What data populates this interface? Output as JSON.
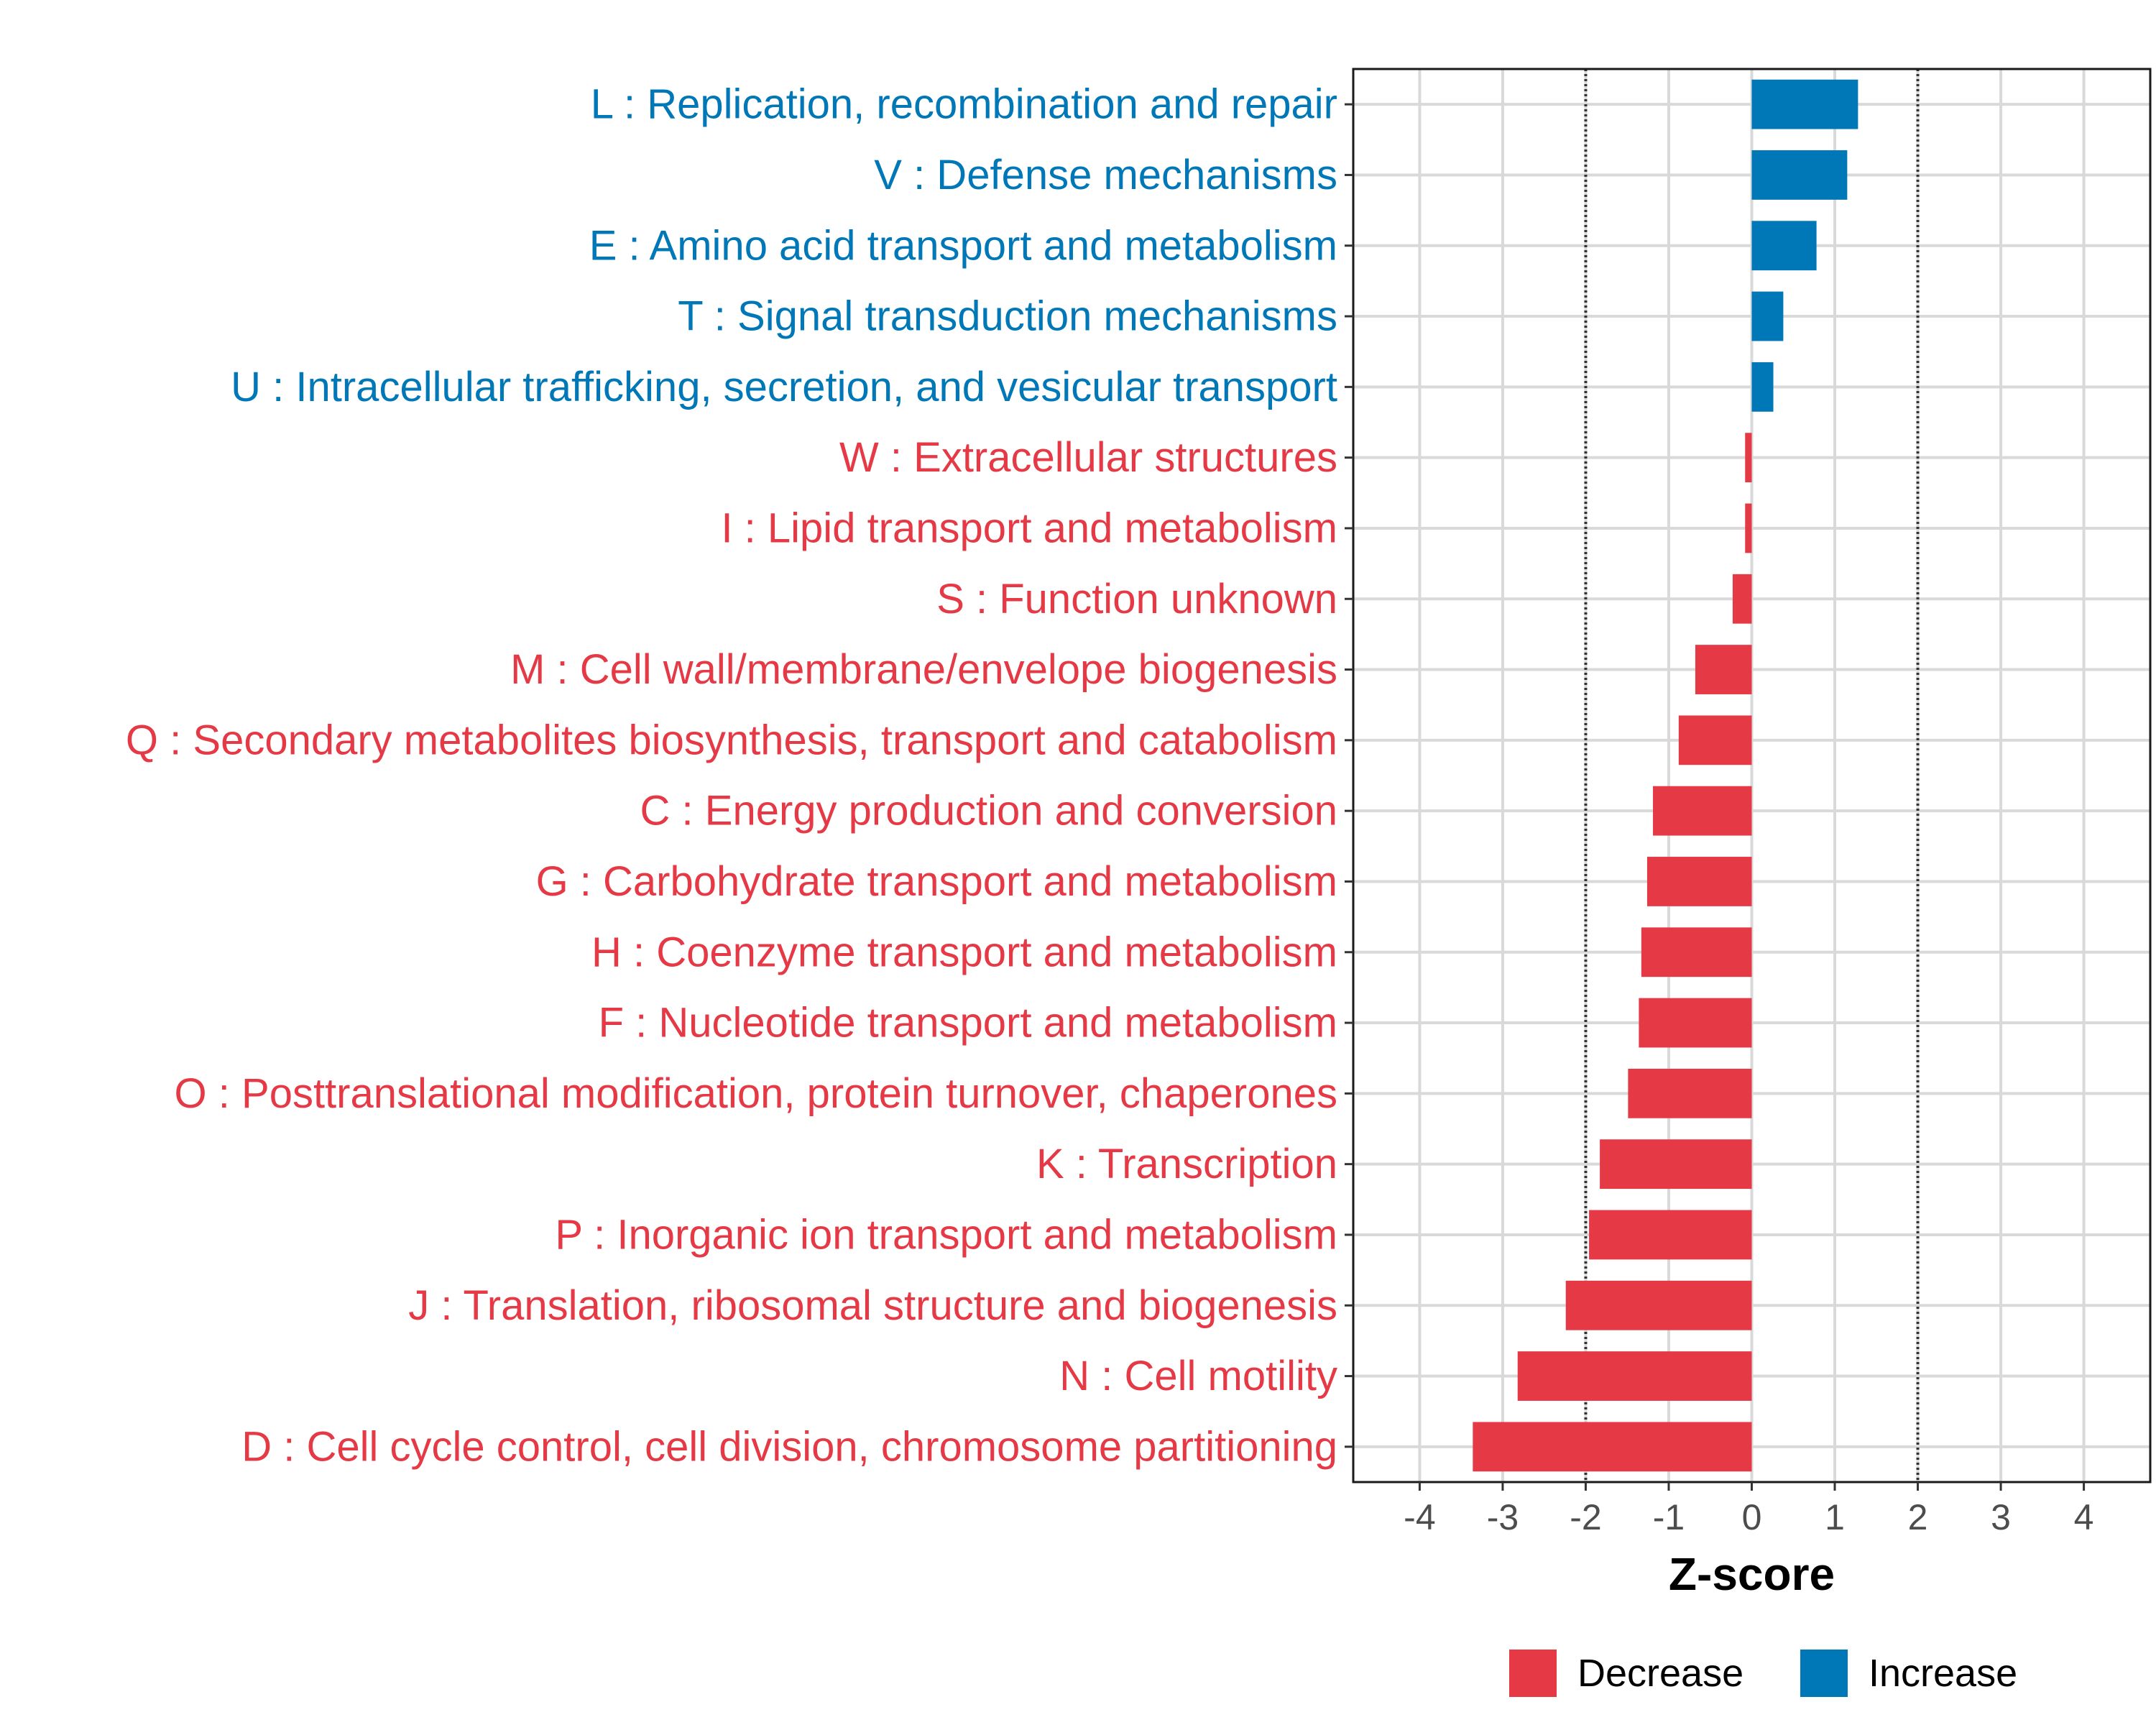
{
  "chart_data": {
    "type": "bar",
    "orientation": "horizontal",
    "title": "",
    "xlabel": "Z-score",
    "ylabel": "",
    "xlim": [
      -4.8,
      4.8
    ],
    "xticks": [
      -4,
      -3,
      -2,
      -1,
      0,
      1,
      2,
      3,
      4
    ],
    "threshold_lines": [
      -2,
      2
    ],
    "grid": true,
    "legend_position": "bottom",
    "colors": {
      "Decrease": "#e63946",
      "Increase": "#0077b6"
    },
    "legend": [
      {
        "name": "Decrease",
        "color": "#e63946"
      },
      {
        "name": "Increase",
        "color": "#0077b6"
      }
    ],
    "categories": [
      {
        "label": "L : Replication, recombination and repair",
        "value": 1.28,
        "direction": "Increase"
      },
      {
        "label": "V : Defense mechanisms",
        "value": 1.15,
        "direction": "Increase"
      },
      {
        "label": "E : Amino acid transport and metabolism",
        "value": 0.78,
        "direction": "Increase"
      },
      {
        "label": "T : Signal transduction mechanisms",
        "value": 0.38,
        "direction": "Increase"
      },
      {
        "label": "U : Intracellular trafficking, secretion, and vesicular transport",
        "value": 0.26,
        "direction": "Increase"
      },
      {
        "label": "W : Extracellular structures",
        "value": -0.08,
        "direction": "Decrease"
      },
      {
        "label": "I : Lipid transport and metabolism",
        "value": -0.08,
        "direction": "Decrease"
      },
      {
        "label": "S : Function unknown",
        "value": -0.23,
        "direction": "Decrease"
      },
      {
        "label": "M : Cell wall/membrane/envelope biogenesis",
        "value": -0.68,
        "direction": "Decrease"
      },
      {
        "label": "Q : Secondary metabolites biosynthesis, transport and catabolism",
        "value": -0.88,
        "direction": "Decrease"
      },
      {
        "label": "C : Energy production and conversion",
        "value": -1.19,
        "direction": "Decrease"
      },
      {
        "label": "G : Carbohydrate transport and metabolism",
        "value": -1.26,
        "direction": "Decrease"
      },
      {
        "label": "H : Coenzyme transport and metabolism",
        "value": -1.33,
        "direction": "Decrease"
      },
      {
        "label": "F : Nucleotide transport and metabolism",
        "value": -1.36,
        "direction": "Decrease"
      },
      {
        "label": "O : Posttranslational modification, protein turnover, chaperones",
        "value": -1.49,
        "direction": "Decrease"
      },
      {
        "label": "K : Transcription",
        "value": -1.83,
        "direction": "Decrease"
      },
      {
        "label": "P : Inorganic ion transport and metabolism",
        "value": -1.96,
        "direction": "Decrease"
      },
      {
        "label": "J : Translation, ribosomal structure and biogenesis",
        "value": -2.24,
        "direction": "Decrease"
      },
      {
        "label": "N : Cell motility",
        "value": -2.82,
        "direction": "Decrease"
      },
      {
        "label": "D : Cell cycle control, cell division, chromosome partitioning",
        "value": -3.36,
        "direction": "Decrease"
      }
    ]
  }
}
